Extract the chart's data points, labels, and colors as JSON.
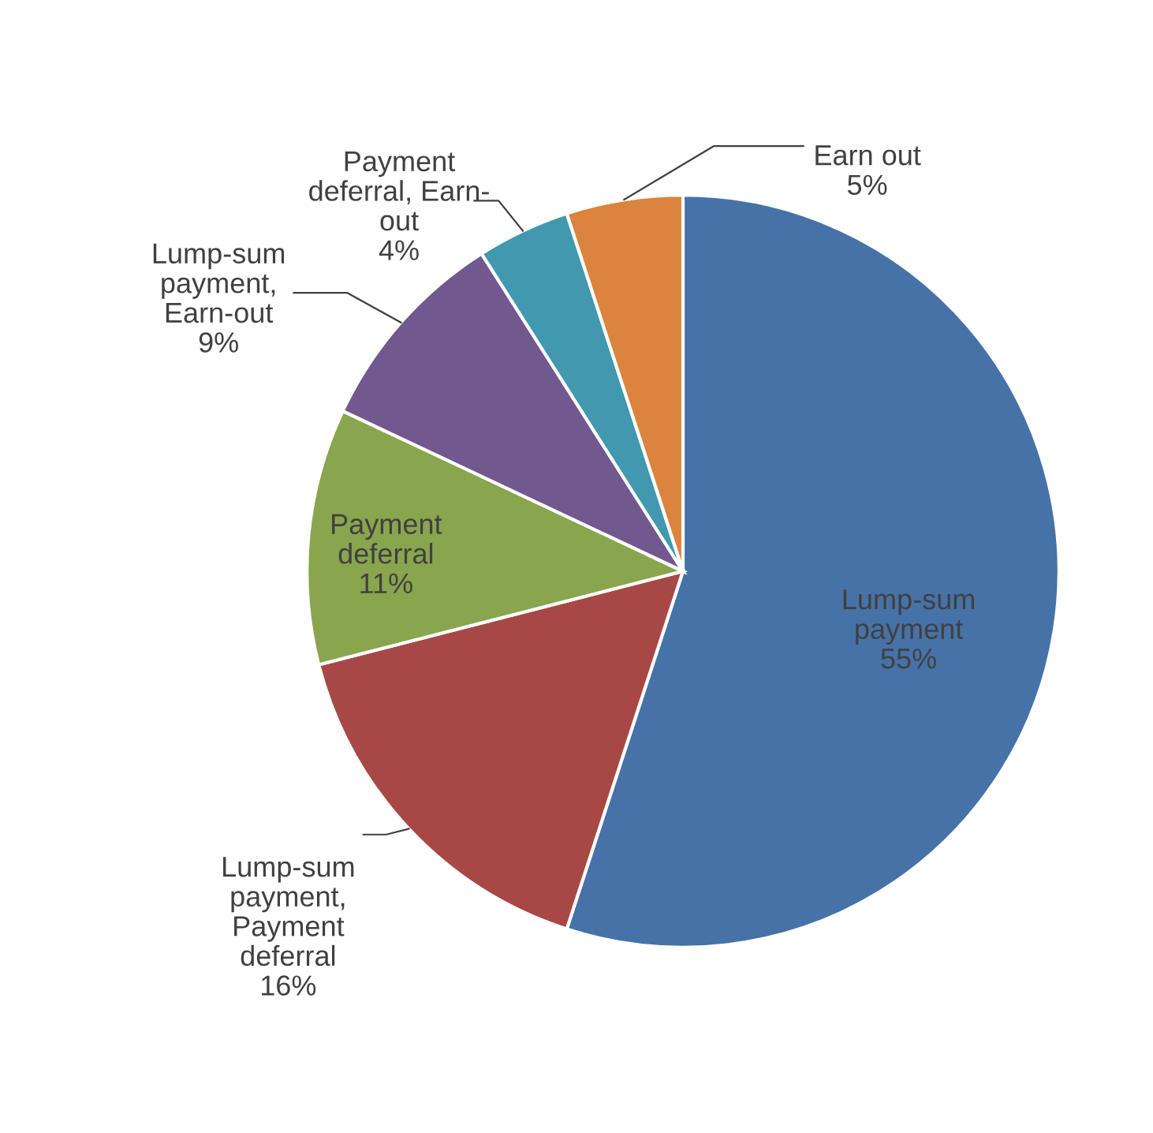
{
  "chart_data": {
    "type": "pie",
    "categories": [
      "Lump-sum\npayment",
      "Lump-sum\npayment,\nPayment\ndeferral",
      "Payment\ndeferral",
      "Lump-sum\npayment,\nEarn-out",
      "Payment\ndeferral, Earn-\nout",
      "Earn out"
    ],
    "values": [
      55,
      16,
      11,
      9,
      4,
      5
    ],
    "colors": [
      "#4672a8",
      "#a84846",
      "#89a54e",
      "#71588f",
      "#4198af",
      "#db843d"
    ],
    "value_labels": [
      "55%",
      "16%",
      "11%",
      "9%",
      "4%",
      "5%"
    ],
    "legend": false
  }
}
